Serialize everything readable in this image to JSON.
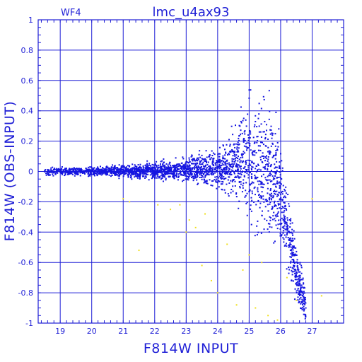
{
  "chart_data": {
    "type": "scatter",
    "title": "lmc_u4ax93",
    "panel_label": "WF4",
    "xlabel": "F814W INPUT",
    "ylabel": "F814W (OBS-INPUT)",
    "xlim": [
      18.3,
      28.0
    ],
    "ylim": [
      -1.0,
      1.0
    ],
    "x_ticks": [
      19,
      20,
      21,
      22,
      23,
      24,
      25,
      26,
      27
    ],
    "y_ticks": [
      1,
      0.8,
      0.6,
      0.4,
      0.2,
      0,
      -0.2,
      -0.4,
      -0.6,
      -0.8,
      -1
    ],
    "grid": true,
    "colors": {
      "axes": "#1f1fd6",
      "main_series": "#1515e0",
      "secondary_series": "#f0e020"
    },
    "series": [
      {
        "color": "#1515e0",
        "description_points": "dense band near 0 widening with magnitude; upturn near 25-26 then drops",
        "x": [
          18.5,
          19.0,
          19.5,
          20.0,
          20.5,
          21.0,
          21.5,
          22.0,
          22.5,
          23.0,
          23.5,
          24.0,
          24.3,
          24.6,
          24.9,
          25.1,
          25.3,
          25.5,
          25.7,
          25.9,
          26.0,
          26.2,
          26.4,
          26.6,
          26.8
        ],
        "y": [
          0.0,
          0.0,
          0.0,
          0.0,
          0.0,
          0.0,
          0.0,
          0.005,
          0.01,
          0.01,
          0.015,
          0.02,
          0.03,
          0.05,
          0.07,
          0.06,
          0.04,
          0.02,
          -0.02,
          -0.08,
          -0.15,
          -0.35,
          -0.55,
          -0.75,
          -0.9
        ],
        "spread": [
          0.012,
          0.012,
          0.013,
          0.014,
          0.016,
          0.018,
          0.02,
          0.025,
          0.03,
          0.035,
          0.045,
          0.06,
          0.08,
          0.11,
          0.15,
          0.18,
          0.2,
          0.2,
          0.2,
          0.18,
          0.15,
          0.12,
          0.1,
          0.08,
          0.06
        ]
      },
      {
        "color": "#f0e020",
        "x": [
          21.0,
          21.2,
          21.5,
          22.1,
          22.5,
          22.8,
          23.0,
          23.1,
          23.3,
          23.5,
          23.6,
          23.8,
          24.0,
          24.3,
          24.6,
          24.8,
          25.0,
          25.2,
          25.4,
          25.6,
          25.9,
          26.2,
          26.5,
          27.0,
          27.3
        ],
        "y": [
          -0.18,
          -0.2,
          -0.52,
          -0.22,
          -0.25,
          -0.22,
          -0.4,
          -0.32,
          -0.37,
          -0.62,
          -0.28,
          -0.72,
          -0.8,
          -0.48,
          -0.88,
          -0.65,
          -0.55,
          -0.9,
          -0.6,
          -0.95,
          -0.98,
          -0.7,
          -0.85,
          -0.18,
          -0.82
        ]
      }
    ]
  }
}
